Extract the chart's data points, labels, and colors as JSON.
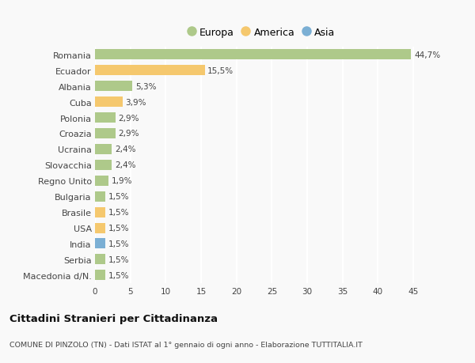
{
  "categories": [
    "Macedonia d/N.",
    "Serbia",
    "India",
    "USA",
    "Brasile",
    "Bulgaria",
    "Regno Unito",
    "Slovacchia",
    "Ucraina",
    "Croazia",
    "Polonia",
    "Cuba",
    "Albania",
    "Ecuador",
    "Romania"
  ],
  "values": [
    1.5,
    1.5,
    1.5,
    1.5,
    1.5,
    1.5,
    1.9,
    2.4,
    2.4,
    2.9,
    2.9,
    3.9,
    5.3,
    15.5,
    44.7
  ],
  "labels": [
    "1,5%",
    "1,5%",
    "1,5%",
    "1,5%",
    "1,5%",
    "1,5%",
    "1,9%",
    "2,4%",
    "2,4%",
    "2,9%",
    "2,9%",
    "3,9%",
    "5,3%",
    "15,5%",
    "44,7%"
  ],
  "colors": [
    "#aec98a",
    "#aec98a",
    "#7bafd4",
    "#f5c86e",
    "#f5c86e",
    "#aec98a",
    "#aec98a",
    "#aec98a",
    "#aec98a",
    "#aec98a",
    "#aec98a",
    "#f5c86e",
    "#aec98a",
    "#f5c86e",
    "#aec98a"
  ],
  "legend_items": [
    {
      "label": "Europa",
      "color": "#aec98a"
    },
    {
      "label": "America",
      "color": "#f5c86e"
    },
    {
      "label": "Asia",
      "color": "#7bafd4"
    }
  ],
  "title": "Cittadini Stranieri per Cittadinanza",
  "subtitle": "COMUNE DI PINZOLO (TN) - Dati ISTAT al 1° gennaio di ogni anno - Elaborazione TUTTITALIA.IT",
  "xlim": [
    0,
    47
  ],
  "xticks": [
    0,
    5,
    10,
    15,
    20,
    25,
    30,
    35,
    40,
    45
  ],
  "background_color": "#f9f9f9",
  "grid_color": "#ffffff",
  "bar_height": 0.65,
  "label_fontsize": 7.5,
  "ytick_fontsize": 8.0,
  "xtick_fontsize": 7.5
}
